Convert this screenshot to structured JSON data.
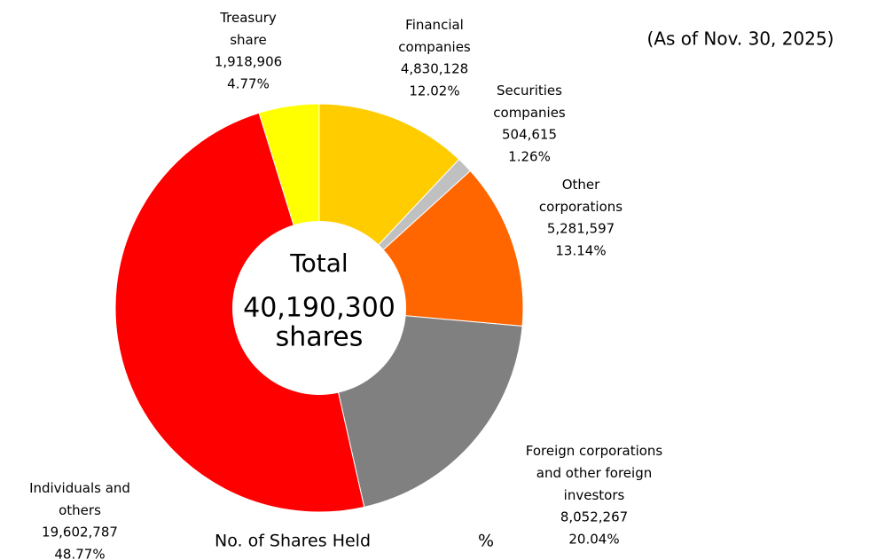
{
  "chart_data": {
    "type": "donut",
    "subtitle": "(As of Nov. 30, 2025)",
    "center_label": "Total",
    "center_total": "40,190,300",
    "center_unit": "shares",
    "categories": [
      "Financial\ncompanies",
      "Securities\ncompanies",
      "Other\ncorporations",
      "Foreign corporations\nand other foreign\ninvestors",
      "Individuals and\nothers",
      "Treasury\nshare"
    ],
    "colors": [
      "#ffcc00",
      "#c0c0c0",
      "#ff6600",
      "#808080",
      "#ff0000",
      "#ffff00"
    ],
    "series": [
      {
        "name": "No. of Shares Held",
        "values": [
          4830128,
          504615,
          5281597,
          8052267,
          19602787,
          1918906
        ],
        "value_labels": [
          "4,830,128",
          "504,615",
          "5,281,597",
          "8,052,267",
          "19,602,787",
          "1,918,906"
        ]
      },
      {
        "name": "%",
        "values": [
          12.02,
          1.26,
          13.14,
          20.04,
          48.77,
          4.77
        ],
        "value_labels": [
          "12.02%",
          "1.26%",
          "13.14%",
          "20.04%",
          "48.77%",
          "4.77%"
        ]
      }
    ]
  }
}
